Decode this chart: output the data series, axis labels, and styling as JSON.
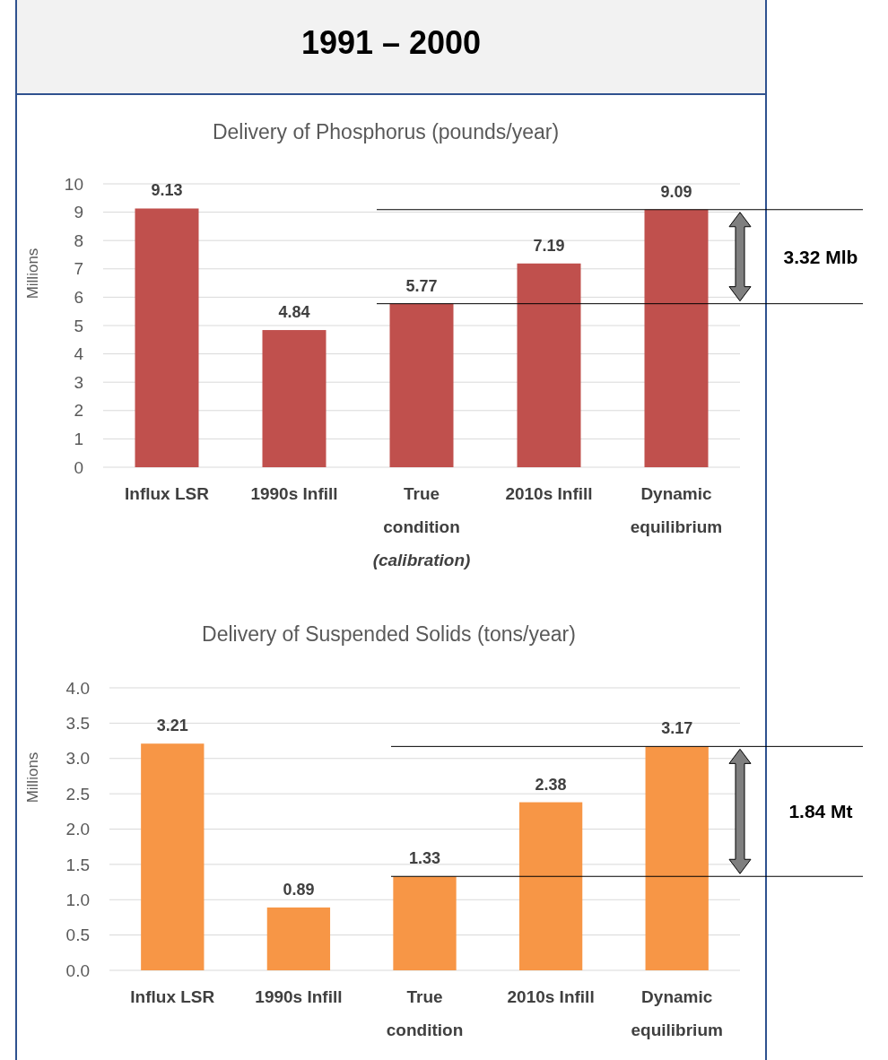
{
  "chart_data": [
    {
      "type": "bar",
      "title": "Delivery of Phosphorus (pounds/year)",
      "ylabel": "Millions",
      "categories": [
        "Influx LSR",
        "1990s Infill",
        "True condition",
        "2010s Infill",
        "Dynamic equilibrium"
      ],
      "values": [
        9.13,
        4.84,
        5.77,
        7.19,
        9.09
      ],
      "color": "#c0504d",
      "ylim": [
        0,
        10
      ],
      "yticks": [
        0,
        1,
        2,
        3,
        4,
        5,
        6,
        7,
        8,
        9,
        10
      ],
      "grid": "y",
      "data_labels": true,
      "ref_lines": [
        {
          "axis": "y",
          "value": 9.09
        },
        {
          "axis": "y",
          "value": 5.77
        }
      ],
      "annotations": [
        "1991 – 2000",
        "(calibration)",
        "3.32 Mlb"
      ]
    },
    {
      "type": "bar",
      "title": "Delivery of Suspended Solids (tons/year)",
      "ylabel": "Millions",
      "categories": [
        "Influx LSR",
        "1990s Infill",
        "True condition",
        "2010s Infill",
        "Dynamic equilibrium"
      ],
      "values": [
        3.21,
        0.89,
        1.33,
        2.38,
        3.17
      ],
      "color": "#f79646",
      "ylim": [
        0,
        4
      ],
      "yticks": [
        {
          "value": 0,
          "label": "0.0"
        },
        {
          "value": 0.5,
          "label": "0.5"
        },
        {
          "value": 1,
          "label": "1.0"
        },
        {
          "value": 1.5,
          "label": "1.5"
        },
        {
          "value": 2,
          "label": "2.0"
        },
        {
          "value": 2.5,
          "label": "2.5"
        },
        {
          "value": 3,
          "label": "3.0"
        },
        {
          "value": 3.5,
          "label": "3.5"
        },
        {
          "value": 4,
          "label": "4.0"
        }
      ],
      "grid": "y",
      "data_labels": true,
      "ref_lines": [
        {
          "axis": "y",
          "value": 3.17
        },
        {
          "axis": "y",
          "value": 1.33
        }
      ],
      "annotations": [
        "1.84 Mt"
      ]
    }
  ]
}
